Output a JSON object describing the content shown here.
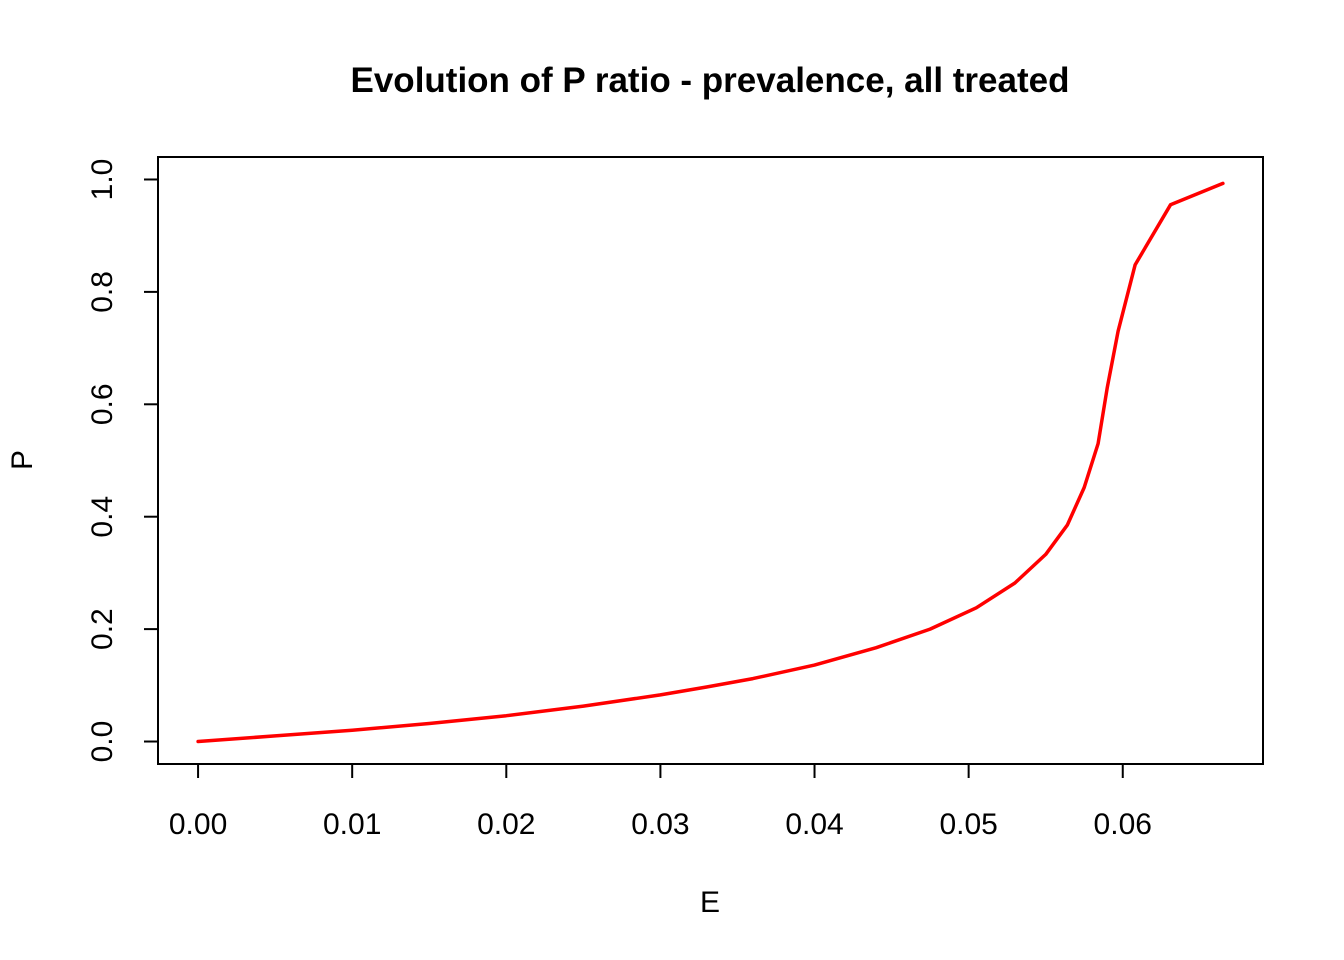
{
  "chart_data": {
    "type": "line",
    "title": "Evolution of P ratio - prevalence, all treated",
    "xlabel": "E",
    "ylabel": "P",
    "xlim": [
      -0.0026,
      0.0691
    ],
    "ylim": [
      -0.04,
      1.04
    ],
    "x_ticks": [
      0.0,
      0.01,
      0.02,
      0.03,
      0.04,
      0.05,
      0.06
    ],
    "x_tick_labels": [
      "0.00",
      "0.01",
      "0.02",
      "0.03",
      "0.04",
      "0.05",
      "0.06"
    ],
    "y_ticks": [
      0.0,
      0.2,
      0.4,
      0.6,
      0.8,
      1.0
    ],
    "y_tick_labels": [
      "0.0",
      "0.2",
      "0.4",
      "0.6",
      "0.8",
      "1.0"
    ],
    "grid": false,
    "series": [
      {
        "color": "#ff0000",
        "x": [
          0.0,
          0.005,
          0.01,
          0.015,
          0.02,
          0.025,
          0.03,
          0.033,
          0.036,
          0.04,
          0.044,
          0.0475,
          0.0505,
          0.053,
          0.055,
          0.0564,
          0.0575,
          0.0584,
          0.059,
          0.0597,
          0.0608,
          0.0631,
          0.0665
        ],
        "y": [
          0.0,
          0.01,
          0.02,
          0.032,
          0.046,
          0.063,
          0.083,
          0.097,
          0.112,
          0.136,
          0.167,
          0.2,
          0.238,
          0.282,
          0.333,
          0.385,
          0.452,
          0.53,
          0.63,
          0.73,
          0.848,
          0.955,
          0.993
        ]
      }
    ]
  }
}
